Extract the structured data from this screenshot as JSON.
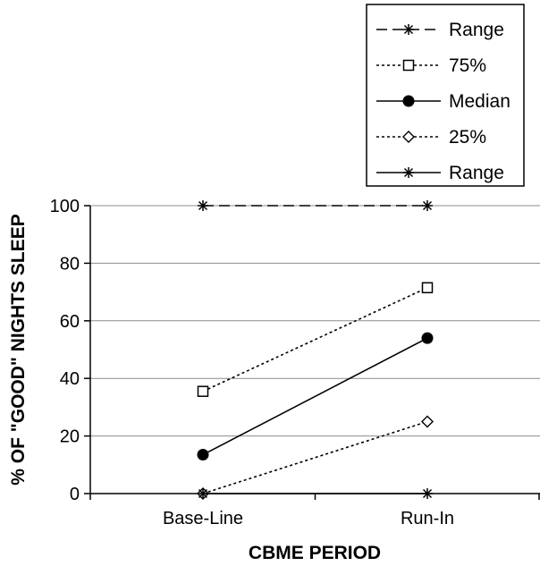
{
  "chart_data": {
    "type": "line",
    "categories": [
      "Base-Line",
      "Run-In"
    ],
    "xlabel": "CBME PERIOD",
    "ylabel": "% OF \"GOOD\" NIGHTS SLEEP",
    "ylim": [
      0,
      100
    ],
    "yticks": [
      0,
      20,
      40,
      60,
      80,
      100
    ],
    "grid": true,
    "legend_position": "top-right",
    "series": [
      {
        "name": "Range",
        "values": [
          100,
          100
        ],
        "line": "dashed",
        "marker": "asterisk"
      },
      {
        "name": "75%",
        "values": [
          35.5,
          71.5
        ],
        "line": "dotted",
        "marker": "open-square"
      },
      {
        "name": "Median",
        "values": [
          13.5,
          54
        ],
        "line": "solid",
        "marker": "filled-circle"
      },
      {
        "name": "25%",
        "values": [
          0,
          25
        ],
        "line": "dotted",
        "marker": "open-diamond"
      },
      {
        "name": "Range",
        "values": [
          0,
          0
        ],
        "line": "solid",
        "marker": "asterisk"
      }
    ]
  }
}
